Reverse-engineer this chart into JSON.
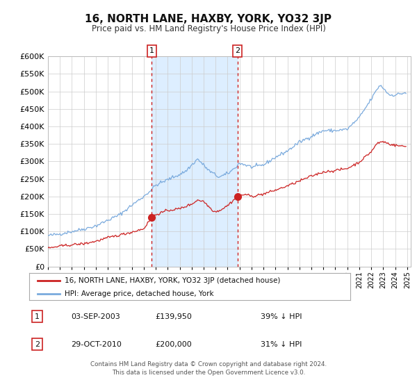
{
  "title": "16, NORTH LANE, HAXBY, YORK, YO32 3JP",
  "subtitle": "Price paid vs. HM Land Registry's House Price Index (HPI)",
  "title_fontsize": 11,
  "subtitle_fontsize": 8.5,
  "background_color": "#ffffff",
  "plot_bg_color": "#ffffff",
  "grid_color": "#cccccc",
  "hpi_color": "#7aaadd",
  "price_color": "#cc2222",
  "shade_color": "#ddeeff",
  "legend_label_price": "16, NORTH LANE, HAXBY, YORK, YO32 3JP (detached house)",
  "legend_label_hpi": "HPI: Average price, detached house, York",
  "sale1_date": 2003.67,
  "sale1_price": 139950,
  "sale1_label": "1",
  "sale2_date": 2010.83,
  "sale2_price": 200000,
  "sale2_label": "2",
  "table_rows": [
    {
      "num": "1",
      "date": "03-SEP-2003",
      "price": "£139,950",
      "pct": "39% ↓ HPI"
    },
    {
      "num": "2",
      "date": "29-OCT-2010",
      "price": "£200,000",
      "pct": "31% ↓ HPI"
    }
  ],
  "footer": "Contains HM Land Registry data © Crown copyright and database right 2024.\nThis data is licensed under the Open Government Licence v3.0.",
  "ylim": [
    0,
    600000
  ],
  "xlim_start": 1995.0,
  "xlim_end": 2025.3
}
